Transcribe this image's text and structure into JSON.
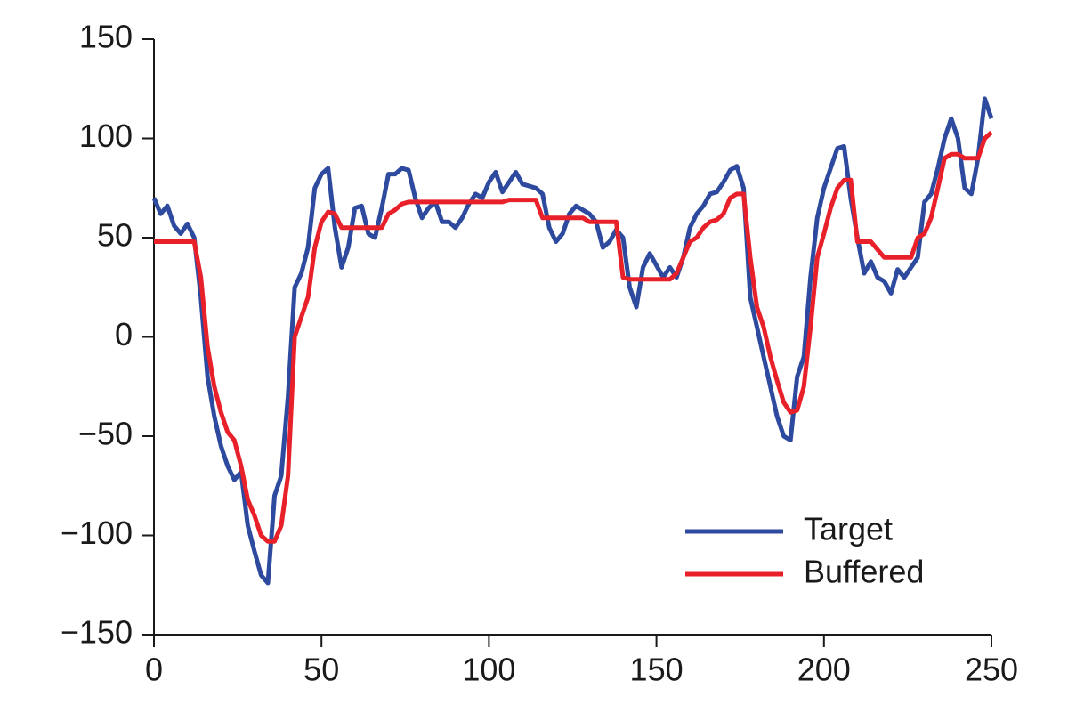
{
  "chart_data": {
    "type": "line",
    "x": [
      0,
      2,
      4,
      6,
      8,
      10,
      12,
      14,
      16,
      18,
      20,
      22,
      24,
      26,
      28,
      30,
      32,
      34,
      36,
      38,
      40,
      42,
      44,
      46,
      48,
      50,
      52,
      54,
      56,
      58,
      60,
      62,
      64,
      66,
      68,
      70,
      72,
      74,
      76,
      78,
      80,
      82,
      84,
      86,
      88,
      90,
      92,
      94,
      96,
      98,
      100,
      102,
      104,
      106,
      108,
      110,
      112,
      114,
      116,
      118,
      120,
      122,
      124,
      126,
      128,
      130,
      132,
      134,
      136,
      138,
      140,
      142,
      144,
      146,
      148,
      150,
      152,
      154,
      156,
      158,
      160,
      162,
      164,
      166,
      168,
      170,
      172,
      174,
      176,
      178,
      180,
      182,
      184,
      186,
      188,
      190,
      192,
      194,
      196,
      198,
      200,
      202,
      204,
      206,
      208,
      210,
      212,
      214,
      216,
      218,
      220,
      222,
      224,
      226,
      228,
      230,
      232,
      234,
      236,
      238,
      240,
      242,
      244,
      246,
      248,
      250
    ],
    "series": [
      {
        "name": "Target",
        "color": "#2e4a9e",
        "values": [
          70,
          62,
          66,
          56,
          52,
          57,
          50,
          20,
          -20,
          -40,
          -55,
          -65,
          -72,
          -68,
          -95,
          -108,
          -120,
          -124,
          -80,
          -70,
          -30,
          25,
          32,
          45,
          75,
          82,
          85,
          55,
          35,
          45,
          65,
          66,
          52,
          50,
          65,
          82,
          82,
          85,
          84,
          70,
          60,
          65,
          68,
          58,
          58,
          55,
          60,
          67,
          72,
          70,
          78,
          83,
          73,
          78,
          83,
          77,
          76,
          75,
          72,
          55,
          48,
          52,
          62,
          66,
          64,
          62,
          58,
          45,
          48,
          54,
          50,
          25,
          15,
          35,
          42,
          36,
          30,
          35,
          30,
          40,
          55,
          62,
          66,
          72,
          73,
          78,
          84,
          86,
          75,
          20,
          5,
          -10,
          -25,
          -40,
          -50,
          -52,
          -20,
          -10,
          30,
          60,
          75,
          85,
          95,
          96,
          70,
          50,
          32,
          38,
          30,
          28,
          22,
          34,
          30,
          35,
          40,
          68,
          72,
          85,
          100,
          110,
          100,
          75,
          72,
          90,
          120,
          110
        ]
      },
      {
        "name": "Buffered",
        "color": "#e8202a",
        "values": [
          48,
          48,
          48,
          48,
          48,
          48,
          48,
          30,
          -5,
          -25,
          -38,
          -48,
          -52,
          -65,
          -82,
          -90,
          -100,
          -103,
          -103,
          -95,
          -70,
          0,
          10,
          20,
          45,
          58,
          63,
          62,
          55,
          55,
          55,
          55,
          55,
          55,
          55,
          62,
          64,
          67,
          68,
          68,
          68,
          68,
          68,
          68,
          68,
          68,
          68,
          68,
          68,
          68,
          68,
          68,
          68,
          69,
          69,
          69,
          69,
          69,
          60,
          60,
          60,
          60,
          60,
          60,
          60,
          58,
          58,
          58,
          58,
          58,
          30,
          29,
          29,
          29,
          29,
          29,
          29,
          29,
          32,
          40,
          48,
          50,
          55,
          58,
          59,
          62,
          70,
          72,
          72,
          40,
          15,
          5,
          -10,
          -22,
          -33,
          -38,
          -37,
          -25,
          5,
          40,
          52,
          65,
          75,
          79,
          79,
          48,
          48,
          48,
          44,
          40,
          40,
          40,
          40,
          40,
          50,
          52,
          60,
          75,
          90,
          92,
          92,
          90,
          90,
          90,
          100,
          103
        ]
      }
    ],
    "xlim": [
      0,
      250
    ],
    "xticks": [
      0,
      50,
      100,
      150,
      200,
      250
    ],
    "ylim": [
      -150,
      150
    ],
    "yticks": [
      {
        "value": -150,
        "label": "−150"
      },
      {
        "value": -100,
        "label": "−100"
      },
      {
        "value": -50,
        "label": "−50"
      },
      0,
      50,
      100,
      150
    ],
    "legend": "lower right"
  }
}
